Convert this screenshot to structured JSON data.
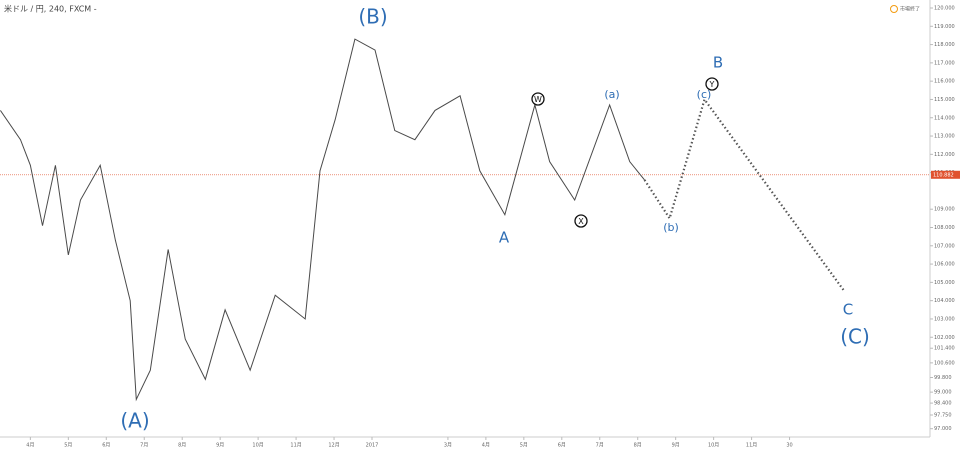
{
  "chart_data": {
    "type": "line",
    "title": "米ドル / 円, 240, FXCM -",
    "status": "市場終了",
    "color": "#4a4a4a",
    "projection_color": "#555555",
    "last_price": 110.882,
    "last_price_label": "110.882",
    "last_price_color": "#e0522e",
    "ylim": [
      96,
      120
    ],
    "xlim": [
      -0.8,
      23.7
    ],
    "yticks": [
      {
        "value": 120,
        "label": "120.000"
      },
      {
        "value": 119,
        "label": "119.000"
      },
      {
        "value": 118,
        "label": "118.000"
      },
      {
        "value": 117,
        "label": "117.000"
      },
      {
        "value": 116,
        "label": "116.000"
      },
      {
        "value": 115,
        "label": "115.000"
      },
      {
        "value": 114,
        "label": "114.000"
      },
      {
        "value": 113,
        "label": "113.000"
      },
      {
        "value": 112,
        "label": "112.000"
      },
      {
        "value": 111,
        "label": "111.000"
      },
      {
        "value": 109,
        "label": "109.000"
      },
      {
        "value": 108,
        "label": "108.000"
      },
      {
        "value": 107,
        "label": "107.000"
      },
      {
        "value": 106,
        "label": "106.000"
      },
      {
        "value": 105,
        "label": "105.000"
      },
      {
        "value": 104,
        "label": "104.000"
      },
      {
        "value": 103,
        "label": "103.000"
      },
      {
        "value": 102,
        "label": "102.000"
      },
      {
        "value": 101.4,
        "label": "101.400"
      },
      {
        "value": 100.6,
        "label": "100.600"
      },
      {
        "value": 99.8,
        "label": "99.800"
      },
      {
        "value": 99,
        "label": "99.000"
      },
      {
        "value": 98.4,
        "label": "98.400"
      },
      {
        "value": 97.75,
        "label": "97.750"
      },
      {
        "value": 97,
        "label": "97.000"
      }
    ],
    "xticks": [
      {
        "value": 0,
        "label": "4月"
      },
      {
        "value": 1,
        "label": "5月"
      },
      {
        "value": 2,
        "label": "6月"
      },
      {
        "value": 3,
        "label": "7月"
      },
      {
        "value": 4,
        "label": "8月"
      },
      {
        "value": 5,
        "label": "9月"
      },
      {
        "value": 6,
        "label": "10月"
      },
      {
        "value": 7,
        "label": "11月"
      },
      {
        "value": 8,
        "label": "12月"
      },
      {
        "value": 9,
        "label": "2017"
      },
      {
        "value": 11,
        "label": "3月"
      },
      {
        "value": 12,
        "label": "4月"
      },
      {
        "value": 13,
        "label": "5月"
      },
      {
        "value": 14,
        "label": "6月"
      },
      {
        "value": 15,
        "label": "7月"
      },
      {
        "value": 16,
        "label": "8月"
      },
      {
        "value": 17,
        "label": "9月"
      },
      {
        "value": 18,
        "label": "10月"
      },
      {
        "value": 19,
        "label": "11月"
      },
      {
        "value": 20,
        "label": "30"
      }
    ],
    "series": [
      {
        "name": "USDJPY",
        "color": "#4a4a4a",
        "x": [
          -0.79,
          -0.26,
          0,
          0.32,
          0.66,
          1,
          1.32,
          1.84,
          2.24,
          2.63,
          2.79,
          3.16,
          3.63,
          4.08,
          4.61,
          5.13,
          5.79,
          6.45,
          7.24,
          7.63,
          8.03,
          8.55,
          9.08,
          9.6,
          10.13,
          10.66,
          11.32,
          11.84,
          12.5,
          13.29,
          13.68,
          14.34,
          15.26,
          15.79,
          16.18
        ],
        "values": [
          114.4,
          112.8,
          111.4,
          108.1,
          111.4,
          106.5,
          109.5,
          111.4,
          107.3,
          104.0,
          98.6,
          100.2,
          106.8,
          101.9,
          99.7,
          103.5,
          100.2,
          104.3,
          103.0,
          111.1,
          113.9,
          118.3,
          117.7,
          113.3,
          112.8,
          114.4,
          115.2,
          111.1,
          108.7,
          114.7,
          111.6,
          109.5,
          114.7,
          111.6,
          110.6
        ]
      },
      {
        "name": "projection",
        "color": "#555555",
        "x": [
          16.18,
          16.84,
          17.76,
          21.45
        ],
        "values": [
          110.6,
          108.5,
          115.0,
          104.5
        ]
      }
    ],
    "annotations": [
      "(B)",
      "(A)",
      "A",
      "B",
      "C",
      "(C)",
      "(a)",
      "(b)",
      "(c)",
      "W",
      "X",
      "Y"
    ]
  }
}
